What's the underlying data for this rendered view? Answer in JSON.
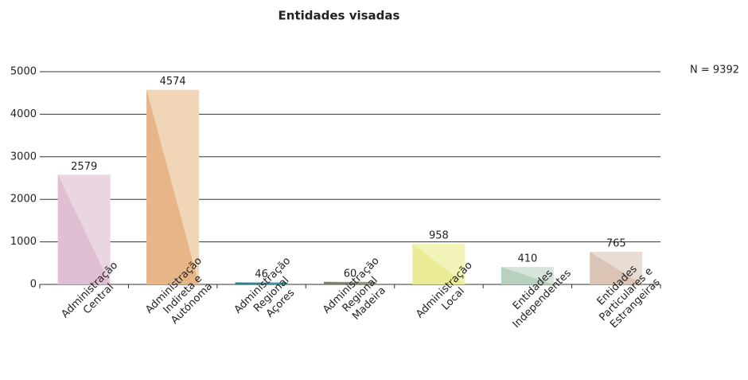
{
  "chart_data": {
    "type": "bar",
    "title": "Entidades visadas",
    "annotation": "N = 9392",
    "categories": [
      [
        "Administração",
        "Central"
      ],
      [
        "Administração",
        "Indireta e",
        "Autónoma"
      ],
      [
        "Administração",
        "Regional",
        "Açores"
      ],
      [
        "Administração",
        "Regional",
        "Madeira"
      ],
      [
        "Administração",
        "Local"
      ],
      [
        "Entidades",
        "Independentes"
      ],
      [
        "Entidades",
        "Particulares e",
        "Estrangeiras"
      ]
    ],
    "values": [
      2579,
      4574,
      46,
      60,
      958,
      410,
      765
    ],
    "colors": [
      "#e9d6e0",
      "#f1d5b7",
      "#4a98a0",
      "#9a9a8c",
      "#f2f3b8",
      "#d6e4d9",
      "#e9dcd4"
    ],
    "shade_colors": [
      "#e0bfd2",
      "#e6b689",
      "#2f7f8a",
      "#7f7f70",
      "#e9eb96",
      "#b8d1bf",
      "#dbc3b6"
    ],
    "ylim": [
      0,
      5000
    ],
    "yticks": [
      0,
      1000,
      2000,
      3000,
      4000,
      5000
    ],
    "grid": true
  }
}
